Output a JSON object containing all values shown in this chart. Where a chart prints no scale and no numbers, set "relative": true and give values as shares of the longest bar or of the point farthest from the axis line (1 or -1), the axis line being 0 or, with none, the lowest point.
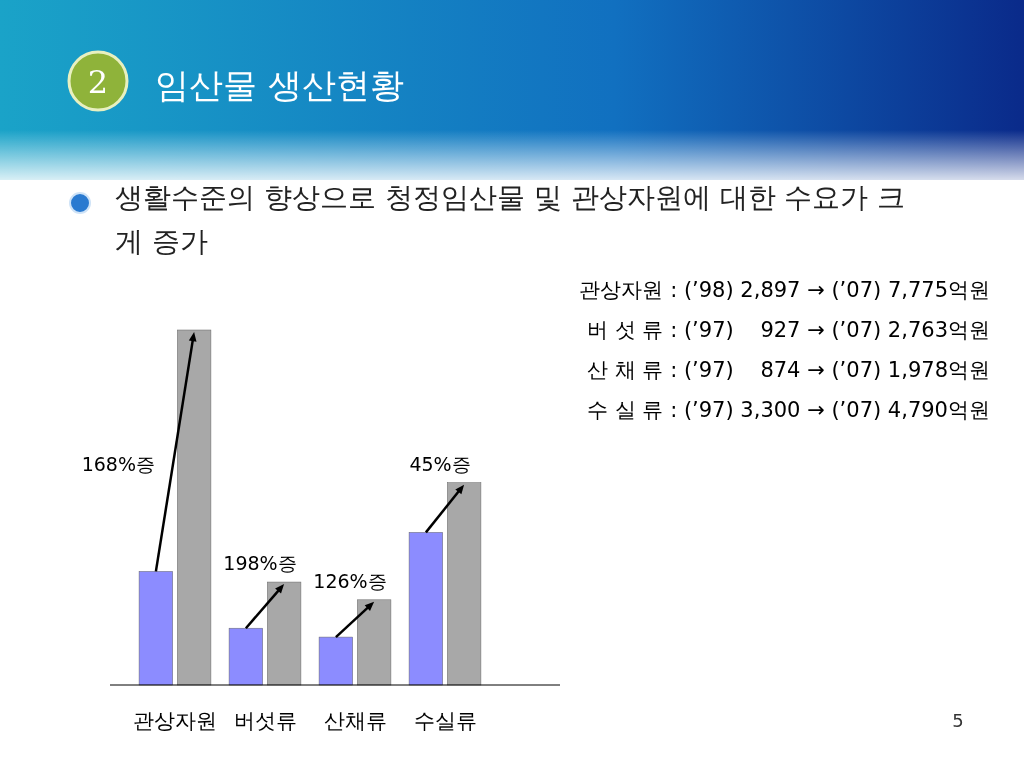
{
  "chart_data": {
    "type": "bar",
    "title": "임산물 생산현황",
    "subtitle": "생활수준의 향상으로 청정임산물 및 관상자원에 대한 수요가 크게 증가",
    "relative": true,
    "categories": [
      "관상자원",
      "버섯류",
      "산채류",
      "수실류"
    ],
    "series": [
      {
        "color": "#8c8cff",
        "values": [
          0.32,
          0.16,
          0.135,
          0.43
        ]
      },
      {
        "color": "#a8a8a8",
        "values": [
          1,
          0.29,
          0.24,
          0.57
        ]
      }
    ],
    "annotations": [
      "2",
      "관상자원 : (’98) 2,897 → (’07) 7,775억원",
      "버 섯 류 : (’97)    927 → (’07) 2,763억원",
      "산 채 류 : (’97)    874 → (’07) 1,978억원",
      "수 실 류 : (’97) 3,300 → (’07) 4,790억원",
      "168%증",
      "198%증",
      "126%증",
      "45%증",
      "5"
    ]
  }
}
